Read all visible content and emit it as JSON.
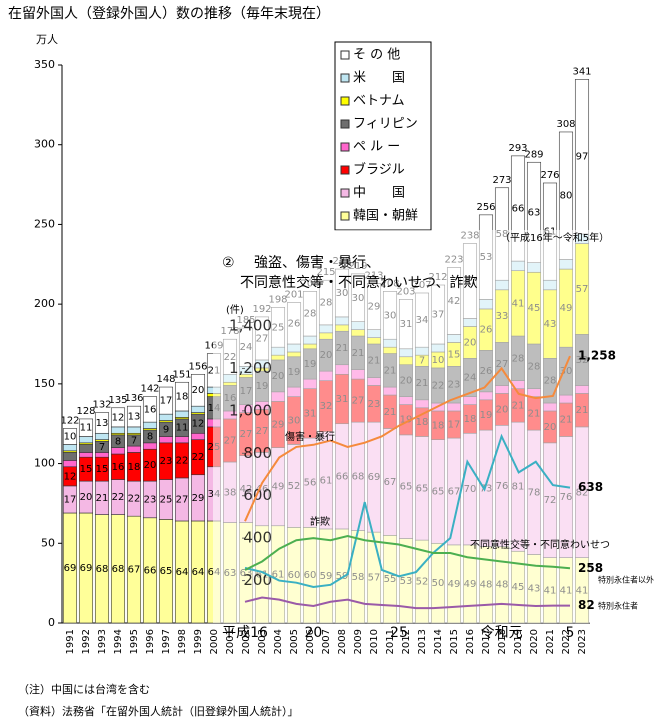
{
  "chart_data": [
    {
      "type": "bar",
      "stacked": true,
      "title": "在留外国人（登録外国人）数の推移（毎年末現在）",
      "y_unit": "万人",
      "categories": [
        "1991",
        "1992",
        "1993",
        "1994",
        "1995",
        "1996",
        "1997",
        "1998",
        "1999",
        "2000",
        "2001",
        "2002",
        "2003",
        "2004",
        "2005",
        "2006",
        "2007",
        "2008",
        "2009",
        "2010",
        "2011",
        "2012",
        "2013",
        "2014",
        "2015",
        "2016",
        "2017",
        "2018",
        "2019",
        "2020",
        "2021",
        "2022",
        "2023"
      ],
      "series": [
        {
          "name": "韓国・朝鮮",
          "color": "#ffff99",
          "values": [
            69,
            69,
            68,
            68,
            67,
            66,
            65,
            64,
            64,
            64,
            63,
            63,
            61,
            61,
            60,
            60,
            59,
            59,
            58,
            57,
            55,
            53,
            52,
            50,
            49,
            49,
            48,
            48,
            45,
            43,
            41,
            41,
            41
          ]
        },
        {
          "name": "中　　国",
          "color": "#f4b8e4",
          "values": [
            17,
            20,
            21,
            22,
            22,
            23,
            25,
            27,
            29,
            34,
            38,
            42,
            46,
            49,
            52,
            56,
            61,
            66,
            68,
            69,
            67,
            65,
            65,
            65,
            67,
            70,
            73,
            76,
            81,
            78,
            72,
            76,
            82
          ]
        },
        {
          "name": "ブラジル",
          "color": "#ff0000",
          "values": [
            12,
            15,
            15,
            16,
            18,
            20,
            23,
            22,
            22,
            25,
            27,
            27,
            27,
            29,
            30,
            31,
            32,
            31,
            27,
            23,
            21,
            19,
            18,
            18,
            17,
            18,
            19,
            20,
            21,
            21,
            20,
            21,
            21
          ]
        },
        {
          "name": "ペ ル ー",
          "color": "#ff66cc",
          "values": [
            4,
            3,
            3,
            4,
            4,
            4,
            4,
            4,
            4,
            5,
            5,
            5,
            5,
            6,
            6,
            6,
            6,
            6,
            6,
            5,
            5,
            5,
            5,
            5,
            5,
            5,
            5,
            5,
            5,
            5,
            5,
            5,
            5
          ]
        },
        {
          "name": "フィリピン",
          "color": "#6e6e6e",
          "values": [
            5,
            5,
            7,
            8,
            7,
            8,
            9,
            11,
            12,
            14,
            16,
            17,
            19,
            20,
            19,
            19,
            20,
            21,
            21,
            21,
            21,
            20,
            21,
            22,
            23,
            24,
            26,
            27,
            28,
            28,
            28,
            30,
            32
          ]
        },
        {
          "name": "ベトナム",
          "color": "#ffff00",
          "values": [
            1,
            1,
            1,
            1,
            1,
            1,
            1,
            1,
            1,
            2,
            2,
            2,
            2,
            3,
            3,
            3,
            4,
            4,
            4,
            4,
            4,
            5,
            7,
            10,
            15,
            20,
            26,
            33,
            41,
            45,
            43,
            49,
            57
          ]
        },
        {
          "name": "米　　国",
          "color": "#bfe6f2",
          "values": [
            4,
            4,
            4,
            4,
            4,
            4,
            4,
            4,
            4,
            4,
            5,
            5,
            5,
            5,
            5,
            5,
            5,
            5,
            5,
            5,
            5,
            5,
            5,
            5,
            5,
            5,
            6,
            6,
            6,
            6,
            6,
            6,
            6
          ]
        },
        {
          "name": "そ の 他",
          "color": "#ffffff",
          "values": [
            10,
            11,
            13,
            12,
            13,
            16,
            17,
            18,
            20,
            21,
            22,
            24,
            27,
            25,
            26,
            28,
            28,
            30,
            30,
            29,
            30,
            31,
            34,
            37,
            42,
            47,
            53,
            58,
            66,
            63,
            61,
            80,
            97
          ]
        }
      ],
      "totals": [
        122,
        128,
        132,
        135,
        136,
        142,
        148,
        151,
        156,
        169,
        178,
        185,
        192,
        198,
        201,
        208,
        215,
        222,
        219,
        213,
        208,
        203,
        207,
        212,
        223,
        238,
        256,
        273,
        293,
        289,
        276,
        308,
        341
      ],
      "ylim": [
        0,
        350
      ],
      "yticks": [
        0,
        50,
        100,
        150,
        200,
        250,
        300,
        350
      ],
      "legend": "top-right",
      "notes": [
        "（注）中国には台湾を含む",
        "（資料）法務省「在留外国人統計（旧登録外国人統計）」"
      ]
    },
    {
      "type": "line",
      "number": "②",
      "title_lines": [
        "強盗、傷害・暴行、",
        "不同意性交等・不同意わいせつ、詐欺"
      ],
      "subtitle": "（平成16年～令和5年）",
      "y_unit": "(件)",
      "categories": [
        "平成16",
        null,
        null,
        null,
        "20",
        null,
        null,
        null,
        null,
        "25",
        null,
        null,
        null,
        null,
        null,
        "令和元",
        null,
        null,
        null,
        "5"
      ],
      "ylim": [
        0,
        1400
      ],
      "yticks": [
        200,
        400,
        600,
        800,
        {
          "value": 1000,
          "label": "1,000"
        },
        {
          "value": 1200,
          "label": "1,200"
        },
        {
          "value": 1400,
          "label": "1,400"
        }
      ],
      "series": [
        {
          "name": "傷害・暴行",
          "color": "#f58a3c",
          "values": [
            480,
            660,
            780,
            830,
            840,
            860,
            830,
            850,
            880,
            930,
            970,
            1010,
            1050,
            1080,
            1110,
            1200,
            1080,
            1060,
            1070,
            1258
          ],
          "value_labels": [
            null,
            null,
            null,
            null,
            null,
            null,
            null,
            null,
            null,
            null,
            null,
            null,
            null,
            null,
            null,
            null,
            null,
            null,
            null,
            "1,258"
          ]
        },
        {
          "name": "不同意性交等・不同意わいせつ",
          "color": "#3ab0c3",
          "values": [
            260,
            240,
            200,
            190,
            170,
            180,
            230,
            570,
            250,
            220,
            240,
            330,
            400,
            760,
            630,
            880,
            710,
            760,
            650,
            638
          ]
        },
        {
          "name": "詐欺",
          "color": "#4caf50",
          "values": [
            250,
            290,
            350,
            390,
            400,
            390,
            410,
            390,
            380,
            370,
            350,
            330,
            330,
            310,
            300,
            290,
            280,
            270,
            265,
            258
          ]
        },
        {
          "color": "#9a5aa8",
          "values": [
            100,
            120,
            110,
            90,
            80,
            100,
            110,
            90,
            85,
            80,
            70,
            70,
            75,
            80,
            85,
            90,
            85,
            80,
            82,
            82
          ]
        }
      ],
      "annotations": [
        "特別永住者以外",
        "特別永住者"
      ]
    }
  ]
}
